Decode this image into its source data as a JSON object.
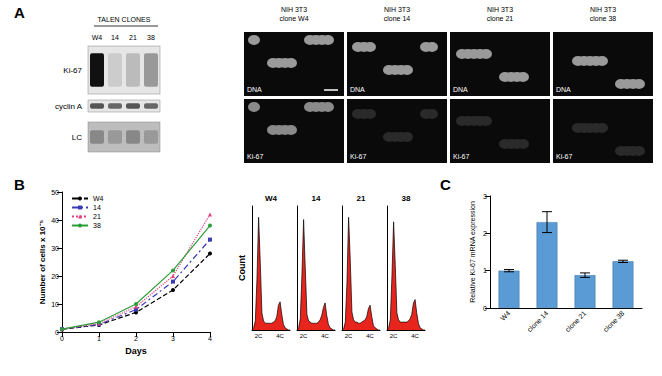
{
  "panel_labels": [
    "A",
    "B",
    "C"
  ],
  "blot": {
    "header": "TALEN CLONES",
    "lanes": [
      "W4",
      "14",
      "21",
      "38"
    ],
    "rows": [
      "Ki-67",
      "cyclin A",
      "LC"
    ]
  },
  "micrographs": {
    "columns": [
      [
        "NIH 3T3",
        "clone W4"
      ],
      [
        "NIH 3T3",
        "clone 14"
      ],
      [
        "NIH 3T3",
        "clone 21"
      ],
      [
        "NIH 3T3",
        "clone 38"
      ]
    ],
    "rows": [
      "DNA",
      "Ki-67"
    ]
  },
  "chart_data": [
    {
      "type": "line",
      "xlabel": "Days",
      "ylabel": "Number of cells x 10⁻⁵",
      "x": [
        0,
        1,
        2,
        3,
        4
      ],
      "xlim": [
        0,
        4
      ],
      "xticks": [
        0,
        1,
        2,
        3,
        4
      ],
      "ylim": [
        0,
        50
      ],
      "yticks": [
        0,
        10,
        20,
        30,
        40,
        50
      ],
      "legend": "top-left",
      "series": [
        {
          "name": "W4",
          "color": "#000000",
          "marker": "circle",
          "line_style": "dashed",
          "values": [
            1,
            2.5,
            7,
            15,
            28
          ]
        },
        {
          "name": "14",
          "color": "#3b3bb8",
          "marker": "square",
          "line_style": "dashdot",
          "values": [
            1,
            2.7,
            8,
            18,
            33
          ]
        },
        {
          "name": "21",
          "color": "#e0407a",
          "marker": "triangle",
          "line_style": "dotted",
          "values": [
            1,
            3,
            9,
            20,
            42
          ]
        },
        {
          "name": "38",
          "color": "#2e9e3a",
          "marker": "circle",
          "line_style": "solid",
          "values": [
            1,
            3.5,
            10,
            22,
            38
          ]
        }
      ]
    },
    {
      "type": "area",
      "ylabel": "Count",
      "categories": [
        null,
        null,
        null,
        null,
        "2C",
        null,
        null,
        null,
        null,
        null,
        null,
        null,
        null,
        null,
        null,
        null,
        null,
        "4C",
        null,
        null,
        null,
        null,
        null,
        null
      ],
      "ylim": [
        0,
        110
      ],
      "yticks": [],
      "tick_labels": "x",
      "series": [
        {
          "name": "W4",
          "color": "#e8251d",
          "values": [
            0,
            2,
            8,
            45,
            100,
            60,
            15,
            8,
            6,
            6,
            6,
            6,
            6,
            7,
            8,
            12,
            22,
            25,
            14,
            5,
            2,
            1,
            0,
            0
          ]
        },
        {
          "name": "14",
          "color": "#e8251d",
          "values": [
            0,
            2,
            10,
            50,
            98,
            55,
            14,
            8,
            7,
            6,
            6,
            6,
            6,
            7,
            9,
            13,
            20,
            24,
            13,
            5,
            2,
            1,
            0,
            0
          ]
        },
        {
          "name": "21",
          "color": "#e8251d",
          "values": [
            0,
            1,
            7,
            42,
            100,
            62,
            16,
            9,
            7,
            7,
            6,
            6,
            7,
            8,
            9,
            12,
            19,
            22,
            12,
            4,
            2,
            1,
            0,
            0
          ]
        },
        {
          "name": "38",
          "color": "#e8251d",
          "values": [
            0,
            2,
            9,
            48,
            96,
            58,
            15,
            9,
            7,
            7,
            7,
            7,
            7,
            8,
            10,
            14,
            24,
            27,
            15,
            6,
            2,
            1,
            0,
            0
          ]
        }
      ]
    },
    {
      "type": "bar",
      "ylabel": "Relative Ki-67 mRNA expression",
      "categories": [
        "W4",
        "clone 14",
        "clone 21",
        "clone 38"
      ],
      "values": [
        1.0,
        2.3,
        0.88,
        1.25
      ],
      "errors": [
        0.03,
        0.28,
        0.06,
        0.03
      ],
      "color": "#5b9bd5",
      "ylim": [
        0,
        3
      ],
      "yticks": [
        0,
        1,
        2,
        3
      ]
    }
  ]
}
